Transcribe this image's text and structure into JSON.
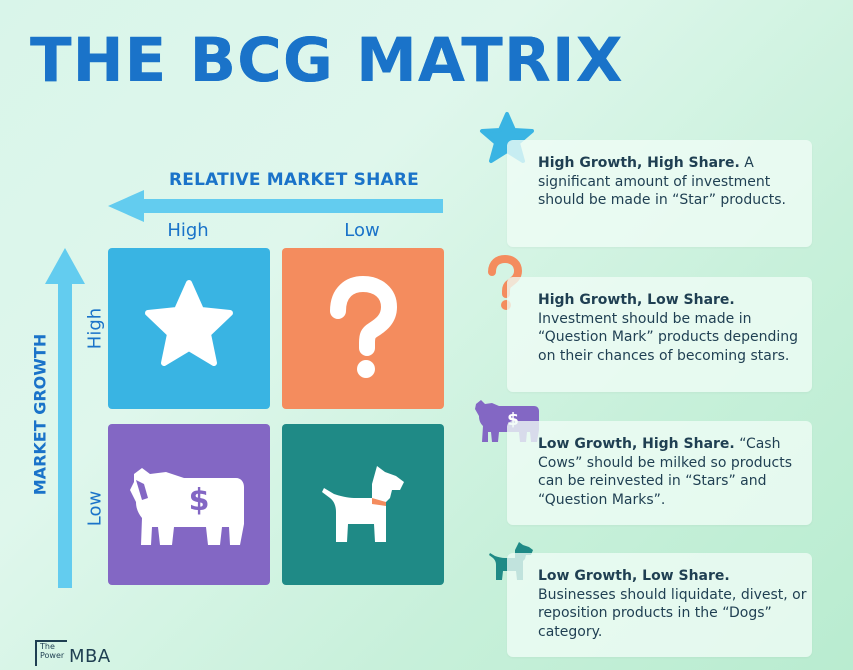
{
  "title": "THE BCG MATRIX",
  "x_axis": {
    "label": "RELATIVE MARKET SHARE",
    "high": "High",
    "low": "Low"
  },
  "y_axis": {
    "label": "MARKET GROWTH",
    "high": "High",
    "low": "Low"
  },
  "quadrants": [
    {
      "name": "Star",
      "icon": "star-icon",
      "color": "#39b4e3"
    },
    {
      "name": "Question Mark",
      "icon": "question-mark-icon",
      "color": "#f48c5e"
    },
    {
      "name": "Cash Cow",
      "icon": "cow-dollar-icon",
      "color": "#8367c4"
    },
    {
      "name": "Dog",
      "icon": "dog-icon",
      "color": "#1f8a86"
    }
  ],
  "cards": [
    {
      "heading": "High Growth, High Share.",
      "body": " A significant amount of investment should be made  in “Star” products."
    },
    {
      "heading": "High Growth, Low Share.",
      "body": " Investment should be made in “Question Mark” products depending on their chances of becoming stars."
    },
    {
      "heading": "Low Growth, High Share.",
      "body": " “Cash Cows” should be milked so products can be reinvested in “Stars” and “Question Marks”."
    },
    {
      "heading": "Low Growth, Low Share.",
      "body": " Businesses should liquidate, divest, or reposition products in the “Dogs” category."
    }
  ],
  "logo": {
    "small": "The Power",
    "big": "MBA"
  },
  "colors": {
    "title": "#1a73c9",
    "arrow": "#63ccef",
    "text": "#1f3f52"
  }
}
